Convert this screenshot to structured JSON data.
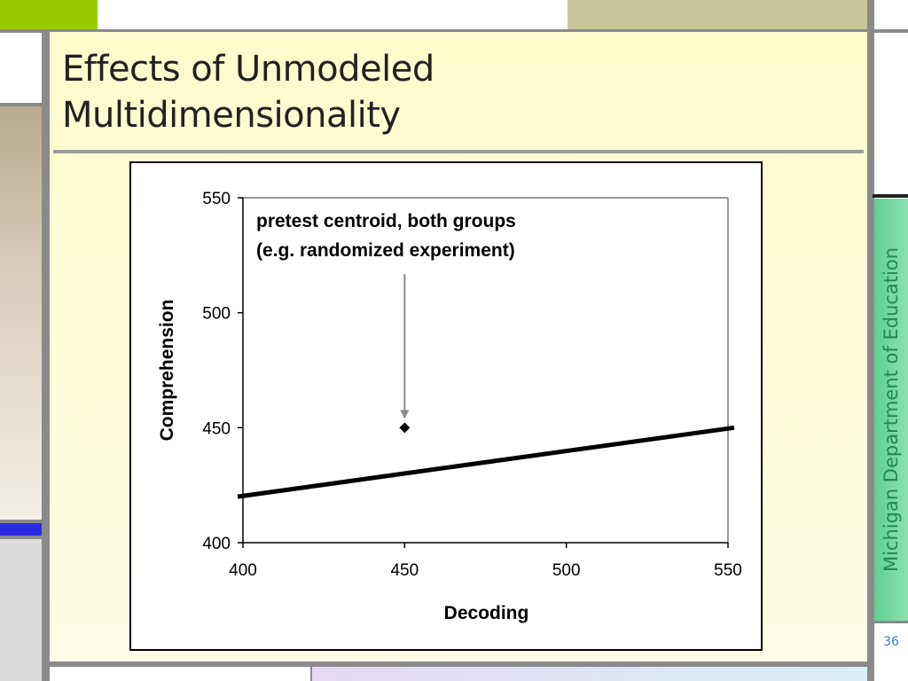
{
  "slide": {
    "title": "Effects of Unmodeled\nMultidimensionality",
    "side_label": "Michigan Department of Education",
    "page_number": "36",
    "colors": {
      "panel_bg": "#fefccc",
      "green_accent": "#99cc00",
      "tan_accent": "#c8c79c",
      "blue_accent": "#2a2ae0",
      "side_green": "#3cb878",
      "border_gray": "#8a8a8a"
    }
  },
  "chart_data": {
    "type": "scatter",
    "xlabel": "Decoding",
    "ylabel": "Comprehension",
    "xlim": [
      400,
      550
    ],
    "ylim": [
      400,
      550
    ],
    "x_ticks": [
      "400",
      "450",
      "500",
      "550"
    ],
    "y_ticks": [
      "400",
      "450",
      "500",
      "550"
    ],
    "points": [
      {
        "x": 450,
        "y": 450
      }
    ],
    "line": {
      "x": [
        400,
        550
      ],
      "y": [
        420,
        450
      ]
    },
    "annotation": {
      "lines": [
        "pretest centroid, both groups",
        "(e.g. randomized experiment)"
      ],
      "arrow_to": {
        "x": 450,
        "y": 450
      }
    },
    "grid": false
  }
}
